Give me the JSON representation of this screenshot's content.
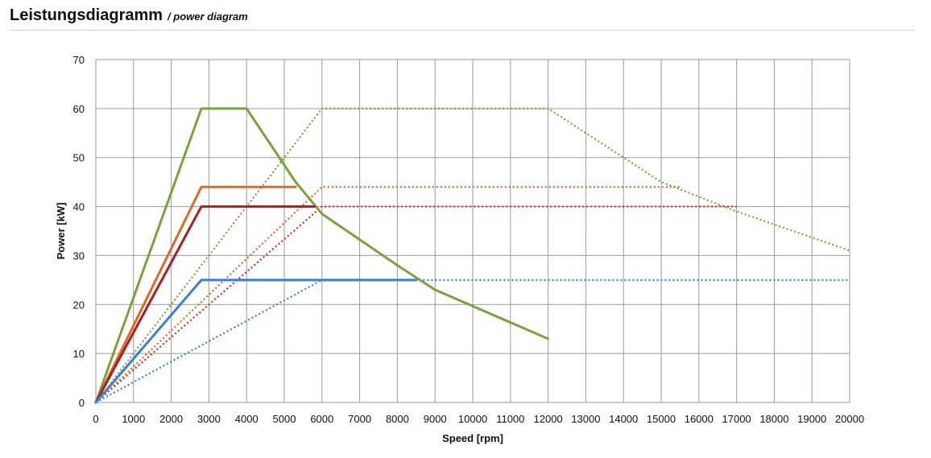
{
  "header": {
    "title": "Leistungsdiagramm",
    "subtitle": "/ power diagram"
  },
  "chart_data": {
    "type": "line",
    "xlabel": "Speed [rpm]",
    "ylabel": "Power [kW]",
    "xlim": [
      0,
      20000
    ],
    "ylim": [
      0,
      70
    ],
    "xticks": [
      0,
      1000,
      2000,
      3000,
      4000,
      5000,
      6000,
      7000,
      8000,
      9000,
      10000,
      11000,
      12000,
      13000,
      14000,
      15000,
      16000,
      17000,
      18000,
      19000,
      20000
    ],
    "yticks": [
      0,
      10,
      20,
      30,
      40,
      50,
      60,
      70
    ],
    "grid": true,
    "series": [
      {
        "color": "#7aa43a",
        "style": "solid",
        "points": [
          [
            0,
            0
          ],
          [
            2800,
            60
          ],
          [
            4000,
            60
          ],
          [
            5300,
            45
          ],
          [
            6000,
            38.5
          ],
          [
            8000,
            28
          ],
          [
            9000,
            23
          ],
          [
            12000,
            13
          ]
        ]
      },
      {
        "color": "#e06a22",
        "style": "solid",
        "points": [
          [
            0,
            0
          ],
          [
            2800,
            44
          ],
          [
            5300,
            44
          ]
        ]
      },
      {
        "color": "#b01c1c",
        "style": "solid",
        "points": [
          [
            0,
            0
          ],
          [
            2800,
            40
          ],
          [
            5800,
            40
          ]
        ]
      },
      {
        "color": "#3a7ee0",
        "style": "solid",
        "points": [
          [
            0,
            0
          ],
          [
            2800,
            25
          ],
          [
            8500,
            25
          ]
        ]
      },
      {
        "color": "#7aa43a",
        "style": "dotted",
        "points": [
          [
            0,
            0
          ],
          [
            6000,
            60
          ],
          [
            12000,
            60
          ],
          [
            15000,
            45
          ],
          [
            17000,
            39
          ],
          [
            20000,
            31
          ]
        ]
      },
      {
        "color": "#e06a22",
        "style": "dotted",
        "points": [
          [
            0,
            0
          ],
          [
            6000,
            44
          ],
          [
            15500,
            44
          ]
        ]
      },
      {
        "color": "#d42a2a",
        "style": "dotted",
        "points": [
          [
            0,
            0
          ],
          [
            6000,
            40
          ],
          [
            17000,
            40
          ]
        ]
      },
      {
        "color": "#3a7ee0",
        "style": "dotted",
        "points": [
          [
            0,
            0
          ],
          [
            6000,
            25
          ],
          [
            20000,
            25
          ]
        ]
      },
      {
        "color": "#333333",
        "style": "dotted",
        "points": [
          [
            0,
            0
          ],
          [
            2800,
            25
          ]
        ]
      }
    ]
  }
}
